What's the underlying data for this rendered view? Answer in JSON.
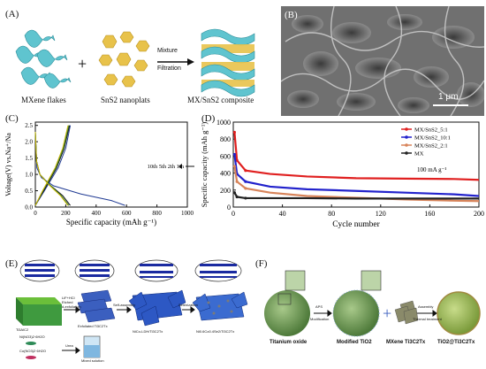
{
  "panels": {
    "A": {
      "label": "(A)",
      "mxene": "MXene flakes",
      "sns2": "SnS2 nanoplats",
      "plus": "+",
      "arrow_top": "Mixture",
      "arrow_bottom": "Filtration",
      "composite": "MX/SnS2 composite"
    },
    "B": {
      "label": "(B)",
      "scale": "1 μm"
    },
    "C": {
      "label": "(C)",
      "legend": "10th 5th 2th 1th"
    },
    "D": {
      "label": "(D)",
      "rate": "100 mA g⁻¹"
    },
    "E": {
      "label": "(E)",
      "labels": {
        "max": "Ti3AlC2",
        "etch": "LiF+HCl\nEtched\nd-exfoliation",
        "exf": "Exfoliated Ti3C2Tx",
        "a": "Ni(NO3)2·6H2O",
        "b": "Co(NO3)2·6H2O",
        "urea": "Urea",
        "mixed": "Mixed solution",
        "self": "Self-assembly",
        "ldh": "NiCo-LDH/Ti3C2Tx",
        "sel": "Selenization",
        "prod": "Ni0.6Co0.4Se2/Ti3C2Tx"
      }
    },
    "F": {
      "label": "(F)",
      "labels": {
        "ti": "Titanium oxide",
        "aps": "APS",
        "mod": "Modification",
        "modti": "Modified TiO2",
        "mx": "MXene Ti3C2Tx",
        "asm": "Assembly",
        "thermal": "Thermal treatment",
        "final": "TiO2@Ti3C2Tx"
      }
    }
  },
  "chart_data": [
    {
      "type": "line",
      "panel": "C",
      "xlabel": "Specific capacity (mAh g⁻¹)",
      "ylabel": "Voltage(V) vs.Na⁺/Na",
      "xlim": [
        0,
        1000
      ],
      "ylim": [
        0,
        2.6
      ],
      "xticks": [
        0,
        200,
        400,
        600,
        800,
        1000
      ],
      "yticks": [
        0.0,
        0.5,
        1.0,
        1.5,
        2.0,
        2.5
      ],
      "series": [
        {
          "name": "1th",
          "color": "#1f3a93",
          "discharge": [
            [
              0,
              2.3
            ],
            [
              10,
              1.2
            ],
            [
              40,
              0.9
            ],
            [
              120,
              0.65
            ],
            [
              300,
              0.4
            ],
            [
              500,
              0.2
            ],
            [
              590,
              0.05
            ]
          ],
          "charge": [
            [
              0,
              0.05
            ],
            [
              60,
              0.5
            ],
            [
              150,
              1.2
            ],
            [
              200,
              1.8
            ],
            [
              230,
              2.5
            ]
          ]
        },
        {
          "name": "2th",
          "color": "#111111",
          "discharge": [
            [
              0,
              2.3
            ],
            [
              8,
              1.4
            ],
            [
              30,
              1.0
            ],
            [
              90,
              0.7
            ],
            [
              180,
              0.35
            ],
            [
              230,
              0.05
            ]
          ],
          "charge": [
            [
              0,
              0.05
            ],
            [
              55,
              0.5
            ],
            [
              140,
              1.2
            ],
            [
              190,
              1.8
            ],
            [
              225,
              2.5
            ]
          ]
        },
        {
          "name": "5th",
          "color": "#2e7d32",
          "discharge": [
            [
              0,
              2.3
            ],
            [
              8,
              1.4
            ],
            [
              30,
              1.0
            ],
            [
              90,
              0.7
            ],
            [
              170,
              0.35
            ],
            [
              220,
              0.05
            ]
          ],
          "charge": [
            [
              0,
              0.05
            ],
            [
              50,
              0.5
            ],
            [
              135,
              1.2
            ],
            [
              185,
              1.8
            ],
            [
              220,
              2.5
            ]
          ]
        },
        {
          "name": "10th",
          "color": "#c9b400",
          "discharge": [
            [
              0,
              2.3
            ],
            [
              8,
              1.4
            ],
            [
              30,
              1.0
            ],
            [
              85,
              0.7
            ],
            [
              165,
              0.35
            ],
            [
              215,
              0.05
            ]
          ],
          "charge": [
            [
              0,
              0.05
            ],
            [
              48,
              0.5
            ],
            [
              130,
              1.2
            ],
            [
              180,
              1.8
            ],
            [
              215,
              2.5
            ]
          ]
        }
      ]
    },
    {
      "type": "line",
      "panel": "D",
      "xlabel": "Cycle number",
      "ylabel": "Specific capacity (mAh g⁻¹)",
      "xlim": [
        0,
        200
      ],
      "ylim": [
        0,
        1000
      ],
      "xticks": [
        0,
        40,
        80,
        120,
        160,
        200
      ],
      "yticks": [
        0,
        200,
        400,
        600,
        800,
        1000
      ],
      "series": [
        {
          "name": "MX/SnS2_5:1",
          "color": "#e02020",
          "points": [
            [
              1,
              880
            ],
            [
              3,
              550
            ],
            [
              10,
              430
            ],
            [
              30,
              390
            ],
            [
              60,
              360
            ],
            [
              100,
              340
            ],
            [
              140,
              335
            ],
            [
              180,
              330
            ],
            [
              200,
              320
            ]
          ]
        },
        {
          "name": "MX/SnS2_10:1",
          "color": "#2222cc",
          "points": [
            [
              1,
              620
            ],
            [
              3,
              390
            ],
            [
              10,
              300
            ],
            [
              30,
              240
            ],
            [
              60,
              210
            ],
            [
              100,
              190
            ],
            [
              140,
              170
            ],
            [
              180,
              150
            ],
            [
              200,
              130
            ]
          ]
        },
        {
          "name": "MX/SnS2_2:1",
          "color": "#d8845a",
          "points": [
            [
              1,
              480
            ],
            [
              3,
              300
            ],
            [
              10,
              220
            ],
            [
              30,
              170
            ],
            [
              60,
              130
            ],
            [
              100,
              110
            ],
            [
              140,
              90
            ],
            [
              180,
              75
            ],
            [
              200,
              70
            ]
          ]
        },
        {
          "name": "MX",
          "color": "#222222",
          "points": [
            [
              1,
              170
            ],
            [
              3,
              120
            ],
            [
              10,
              105
            ],
            [
              30,
              105
            ],
            [
              60,
              105
            ],
            [
              100,
              100
            ],
            [
              140,
              100
            ],
            [
              180,
              100
            ],
            [
              200,
              100
            ]
          ]
        }
      ]
    }
  ]
}
